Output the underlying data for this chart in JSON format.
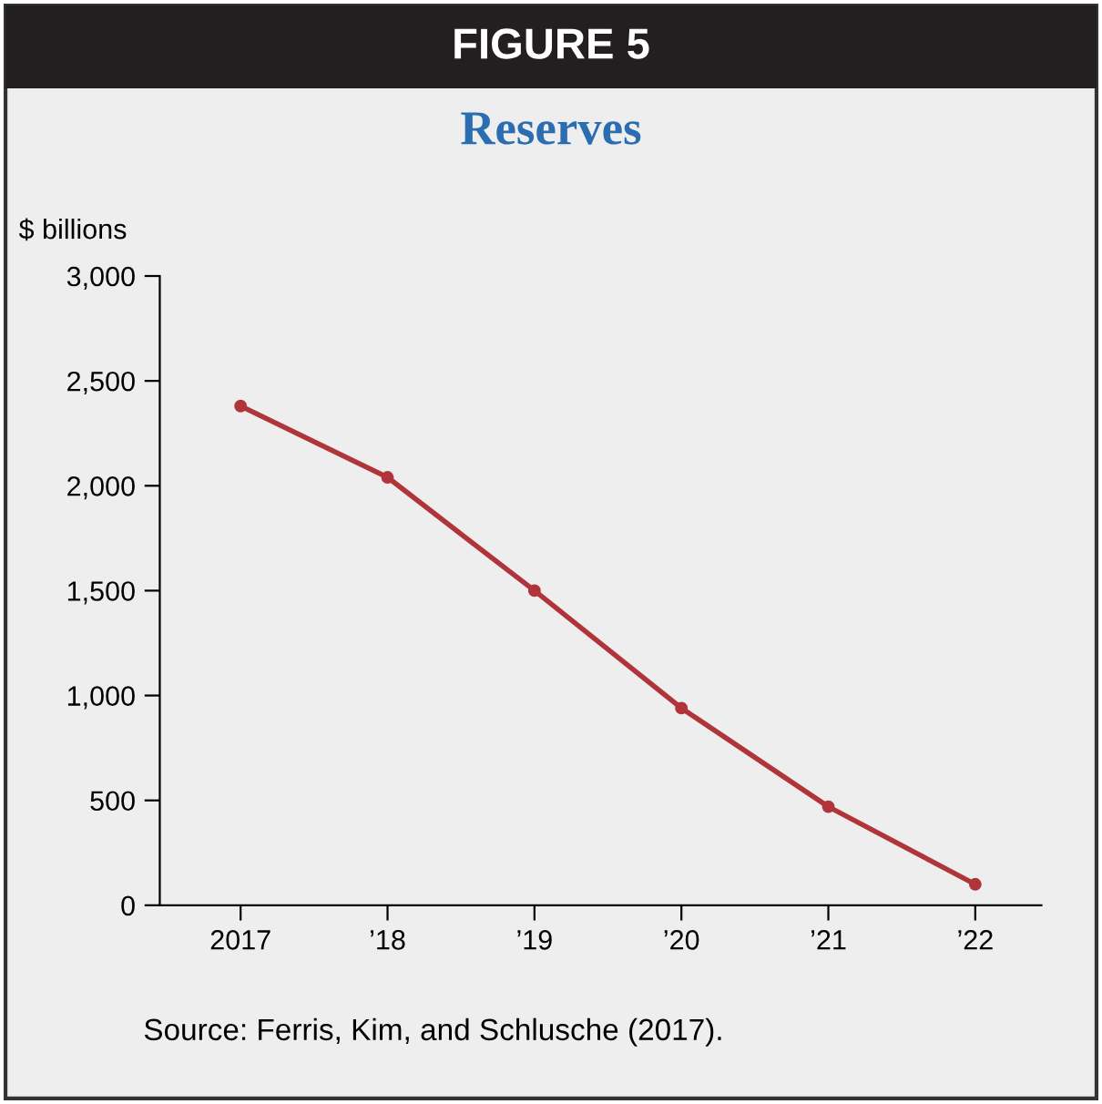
{
  "chart_data": {
    "type": "line",
    "title": "FIGURE 5",
    "subtitle": "Reserves",
    "ylabel": "$ billions",
    "categories": [
      "2017",
      "’18",
      "’19",
      "’20",
      "’21",
      "’22"
    ],
    "series": [
      {
        "color": "#b0353a",
        "values": [
          2380,
          2040,
          1500,
          940,
          470,
          100
        ]
      }
    ],
    "ylim": [
      0,
      3000
    ],
    "yticks": [
      0,
      500,
      {
        "value": 1000,
        "label": "1,000"
      },
      {
        "value": 1500,
        "label": "1,500"
      },
      {
        "value": 2000,
        "label": "2,000"
      },
      {
        "value": 2500,
        "label": "2,500"
      },
      {
        "value": 3000,
        "label": "3,000"
      }
    ],
    "grid": false,
    "legend": false,
    "marker": "circle",
    "line_style": "solid",
    "annotations": [
      "Source: Ferris, Kim, and Schlusche (2017)."
    ]
  }
}
